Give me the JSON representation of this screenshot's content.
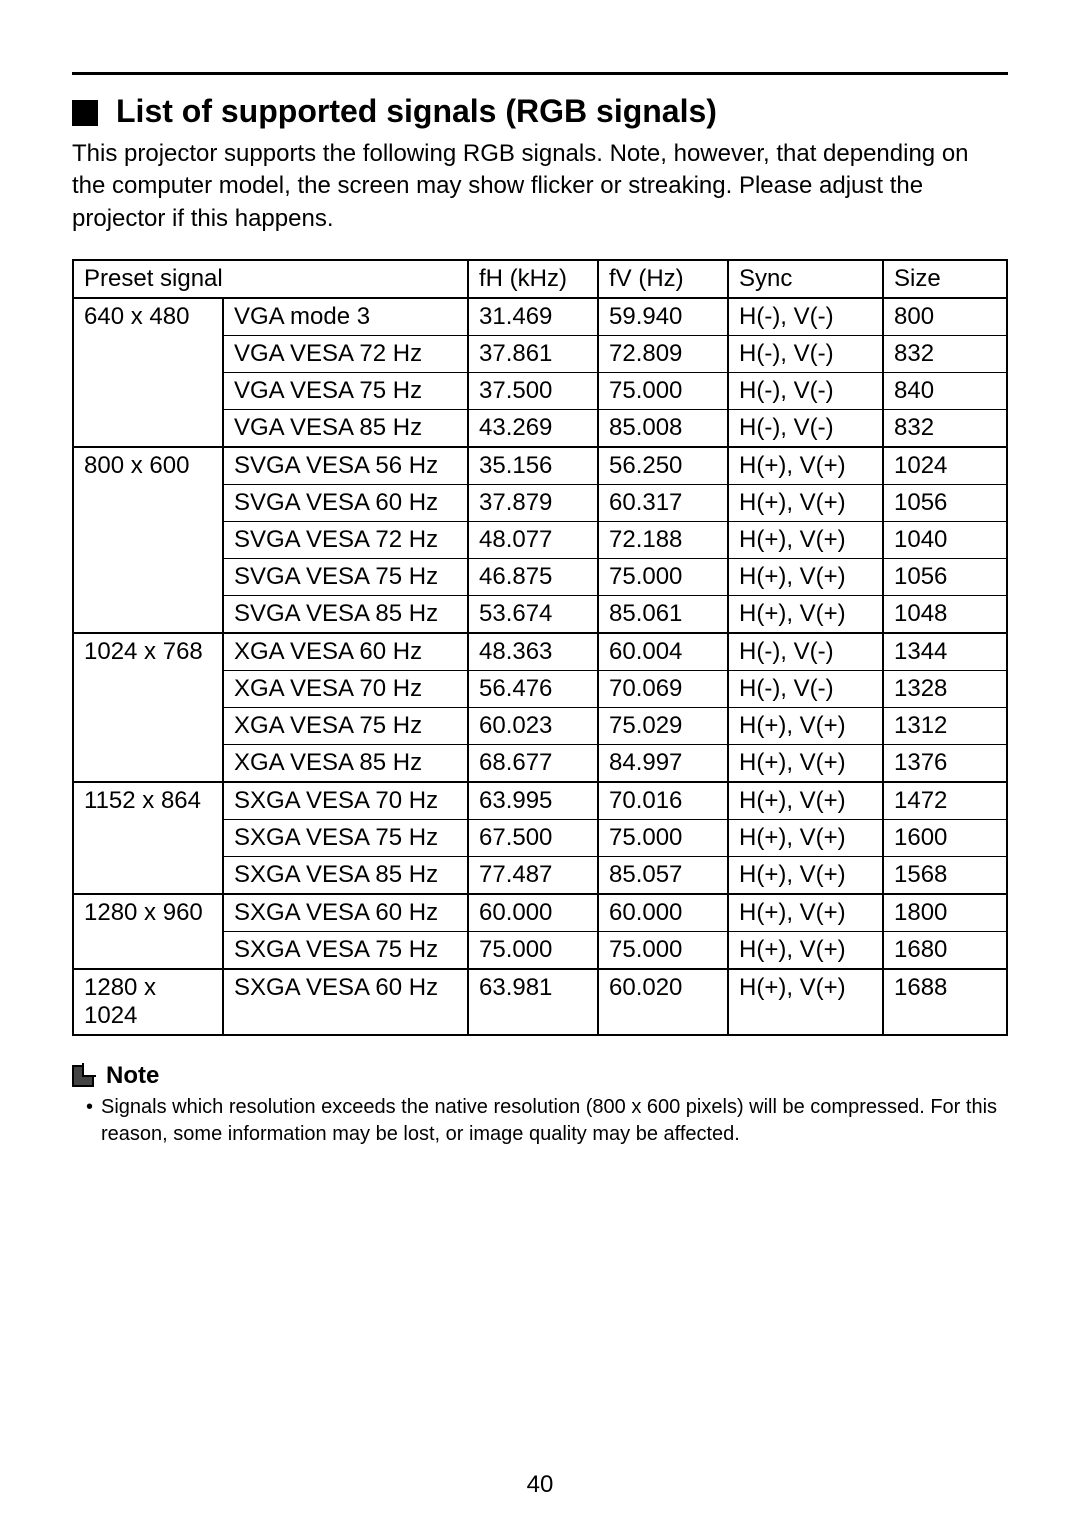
{
  "heading": "List of supported signals (RGB signals)",
  "intro": "This projector supports the following RGB signals. Note, however, that depending on the computer model, the screen may show flicker or streaking. Please adjust the projector if this happens.",
  "table": {
    "columns": {
      "preset": "Preset signal",
      "fh": "fH (kHz)",
      "fv": "fV  (Hz)",
      "sync": "Sync",
      "size": "Size"
    },
    "groups": [
      {
        "resolution": "640 x 480",
        "rows": [
          {
            "mode": "VGA mode 3",
            "fh": "31.469",
            "fv": "59.940",
            "sync": "H(-), V(-)",
            "size": "800"
          },
          {
            "mode": "VGA VESA 72 Hz",
            "fh": "37.861",
            "fv": "72.809",
            "sync": "H(-), V(-)",
            "size": "832"
          },
          {
            "mode": "VGA VESA 75 Hz",
            "fh": "37.500",
            "fv": "75.000",
            "sync": "H(-), V(-)",
            "size": "840"
          },
          {
            "mode": "VGA VESA 85 Hz",
            "fh": "43.269",
            "fv": "85.008",
            "sync": "H(-), V(-)",
            "size": "832"
          }
        ]
      },
      {
        "resolution": "800 x 600",
        "rows": [
          {
            "mode": "SVGA VESA 56 Hz",
            "fh": "35.156",
            "fv": "56.250",
            "sync": "H(+), V(+)",
            "size": "1024"
          },
          {
            "mode": "SVGA VESA 60 Hz",
            "fh": "37.879",
            "fv": "60.317",
            "sync": "H(+), V(+)",
            "size": "1056"
          },
          {
            "mode": "SVGA VESA 72 Hz",
            "fh": "48.077",
            "fv": "72.188",
            "sync": "H(+), V(+)",
            "size": "1040"
          },
          {
            "mode": "SVGA VESA 75 Hz",
            "fh": "46.875",
            "fv": "75.000",
            "sync": "H(+), V(+)",
            "size": "1056"
          },
          {
            "mode": "SVGA VESA 85 Hz",
            "fh": "53.674",
            "fv": "85.061",
            "sync": "H(+), V(+)",
            "size": "1048"
          }
        ]
      },
      {
        "resolution": "1024 x 768",
        "rows": [
          {
            "mode": "XGA VESA 60 Hz",
            "fh": "48.363",
            "fv": "60.004",
            "sync": "H(-), V(-)",
            "size": "1344"
          },
          {
            "mode": "XGA VESA 70 Hz",
            "fh": "56.476",
            "fv": "70.069",
            "sync": "H(-), V(-)",
            "size": "1328"
          },
          {
            "mode": "XGA VESA 75 Hz",
            "fh": "60.023",
            "fv": "75.029",
            "sync": "H(+), V(+)",
            "size": "1312"
          },
          {
            "mode": "XGA VESA 85 Hz",
            "fh": "68.677",
            "fv": "84.997",
            "sync": "H(+), V(+)",
            "size": "1376"
          }
        ]
      },
      {
        "resolution": "1152 x 864",
        "rows": [
          {
            "mode": "SXGA VESA 70 Hz",
            "fh": "63.995",
            "fv": "70.016",
            "sync": "H(+), V(+)",
            "size": "1472"
          },
          {
            "mode": "SXGA VESA 75 Hz",
            "fh": "67.500",
            "fv": "75.000",
            "sync": "H(+), V(+)",
            "size": "1600"
          },
          {
            "mode": "SXGA VESA 85 Hz",
            "fh": "77.487",
            "fv": "85.057",
            "sync": "H(+), V(+)",
            "size": "1568"
          }
        ]
      },
      {
        "resolution": "1280 x 960",
        "rows": [
          {
            "mode": "SXGA VESA 60 Hz",
            "fh": "60.000",
            "fv": "60.000",
            "sync": "H(+), V(+)",
            "size": "1800"
          },
          {
            "mode": "SXGA VESA 75 Hz",
            "fh": "75.000",
            "fv": "75.000",
            "sync": "H(+), V(+)",
            "size": "1680"
          }
        ]
      },
      {
        "resolution": "1280 x 1024",
        "rows": [
          {
            "mode": "SXGA VESA 60 Hz",
            "fh": "63.981",
            "fv": "60.020",
            "sync": "H(+), V(+)",
            "size": "1688"
          }
        ]
      }
    ]
  },
  "note": {
    "label": "Note",
    "bullet": "•",
    "text": "Signals which resolution exceeds the native resolution (800 x 600 pixels) will be compressed. For this reason, some information may be lost, or image quality may be affected."
  },
  "page_number": "40"
}
